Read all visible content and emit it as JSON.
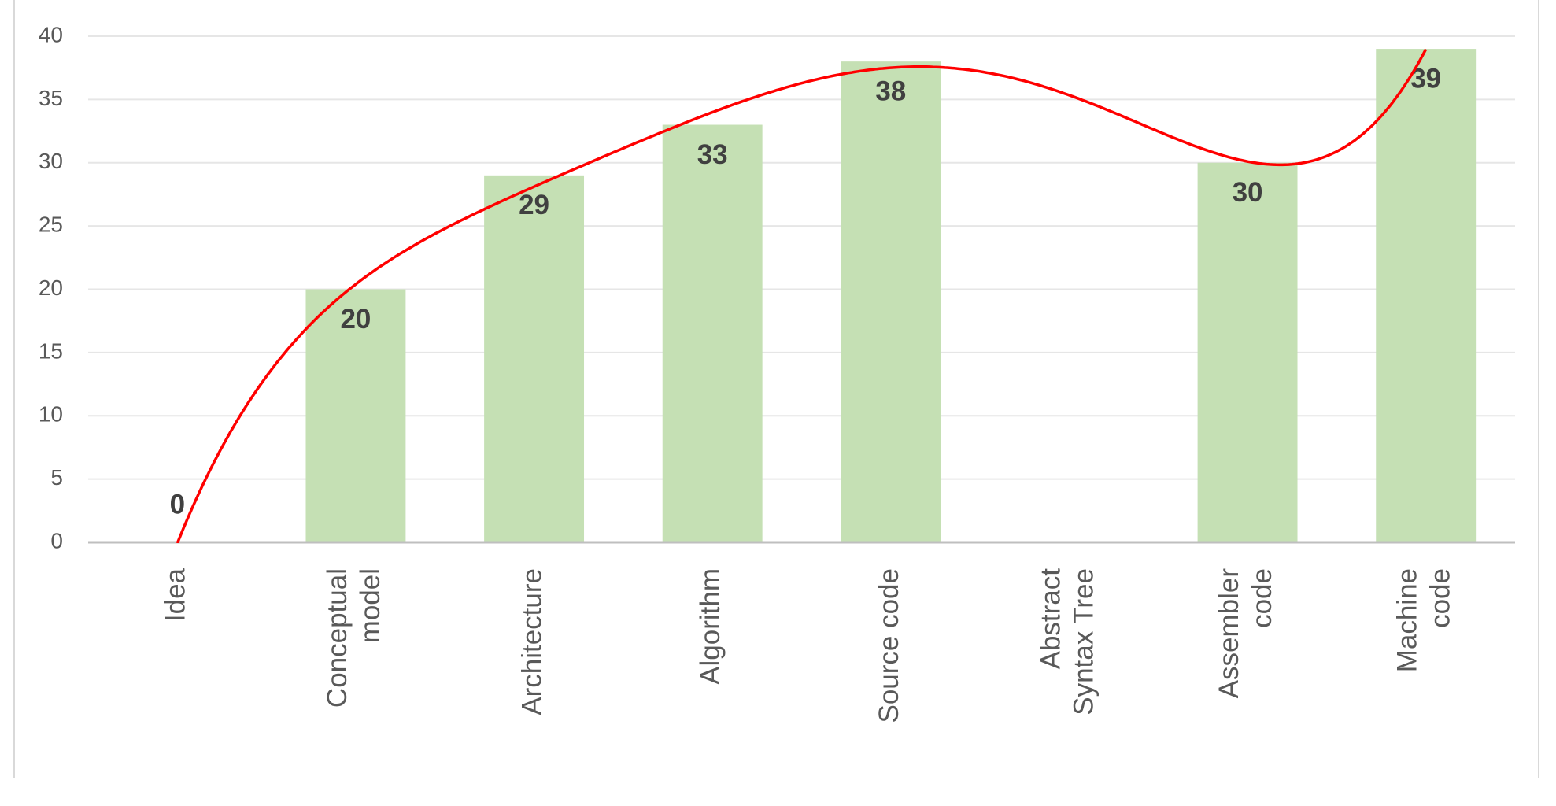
{
  "chart_data": {
    "type": "bar",
    "categories": [
      [
        "Idea"
      ],
      [
        "Conceptual",
        "model"
      ],
      [
        "Architecture"
      ],
      [
        "Algorithm"
      ],
      [
        "Source  code"
      ],
      [
        "Abstract",
        "Syntax Tree"
      ],
      [
        "Assembler",
        "code"
      ],
      [
        "Machine",
        "code"
      ]
    ],
    "values": [
      0,
      20,
      29,
      33,
      38,
      null,
      30,
      39
    ],
    "color": "#c5e0b4",
    "ylim": [
      0,
      40
    ],
    "yticks": [
      0,
      5,
      10,
      15,
      20,
      25,
      30,
      35,
      40
    ],
    "grid": true,
    "trendline": {
      "type": "polynomial",
      "color": "#ff0000"
    }
  }
}
